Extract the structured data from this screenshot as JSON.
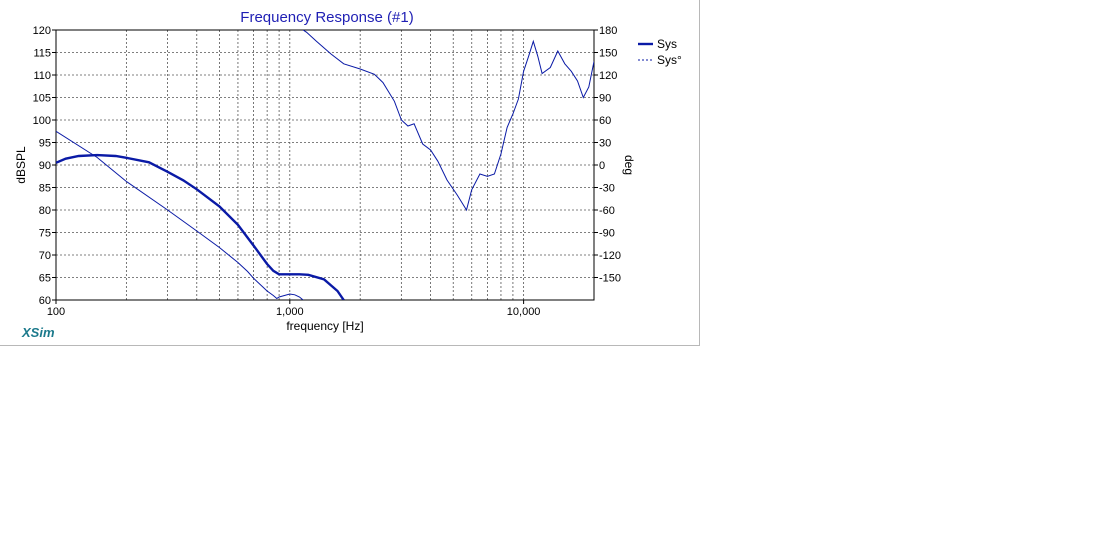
{
  "app": {
    "brand": "XSim"
  },
  "chart_data": {
    "type": "line",
    "title": "Frequency Response (#1)",
    "xlabel": "frequency [Hz]",
    "ylabel": "dBSPL",
    "y2label": "deg",
    "xscale": "log",
    "xlim": [
      100,
      20000
    ],
    "ylim": [
      60,
      120
    ],
    "y2lim": [
      -180,
      180
    ],
    "grid": true,
    "legend_position": "top-right",
    "x_tick_labels": [
      {
        "value": 100,
        "label": "100"
      },
      {
        "value": 1000,
        "label": "1,000"
      },
      {
        "value": 10000,
        "label": "10,000"
      }
    ],
    "y_ticks": [
      60,
      65,
      70,
      75,
      80,
      85,
      90,
      95,
      100,
      105,
      110,
      115,
      120
    ],
    "y2_ticks": [
      -150,
      -120,
      -90,
      -60,
      -30,
      0,
      30,
      60,
      90,
      120,
      150,
      180
    ],
    "series": [
      {
        "name": "Sys",
        "axis": "left",
        "style": "solid-thick",
        "color": "#0a1aa6",
        "x": [
          100,
          110,
          125,
          150,
          180,
          200,
          250,
          300,
          350,
          400,
          500,
          600,
          700,
          800,
          850,
          900,
          1000,
          1100,
          1200,
          1400,
          1600,
          1700
        ],
        "y": [
          90.5,
          91.4,
          92.0,
          92.2,
          92.0,
          91.6,
          90.6,
          88.5,
          86.6,
          84.6,
          80.8,
          76.7,
          72.1,
          68.0,
          66.5,
          65.7,
          65.7,
          65.7,
          65.6,
          64.6,
          62.0,
          60.0
        ]
      },
      {
        "name": "Sys°",
        "axis": "right",
        "style": "dashed-thin",
        "color": "#0a1aa6",
        "x": [
          100,
          150,
          200,
          300,
          400,
          500,
          600,
          660,
          700,
          800,
          850,
          880,
          900,
          1000,
          1050,
          1100,
          1180,
          1300,
          1500,
          1700,
          2000,
          2300,
          2500,
          2800,
          3000,
          3200,
          3400,
          3700,
          4000,
          4300,
          4700,
          5200,
          5700,
          6000,
          6500,
          7000,
          7500,
          8000,
          8500,
          9000,
          9500,
          10000,
          10500,
          11000,
          11500,
          12000,
          13000,
          14000,
          15000,
          16000,
          17000,
          18000,
          19000,
          20000
        ],
        "y": [
          45,
          10,
          -22,
          -60,
          -88,
          -110,
          -130,
          -142,
          -151,
          -168,
          -174,
          -178,
          -176,
          -172,
          -173,
          -176,
          177,
          165,
          148,
          135,
          128,
          121,
          110,
          85,
          60,
          52,
          55,
          28,
          20,
          5,
          -20,
          -40,
          -60,
          -33,
          -12,
          -15,
          -12,
          15,
          50,
          68,
          88,
          125,
          145,
          165,
          145,
          122,
          130,
          152,
          135,
          125,
          112,
          90,
          104,
          138
        ]
      }
    ]
  }
}
